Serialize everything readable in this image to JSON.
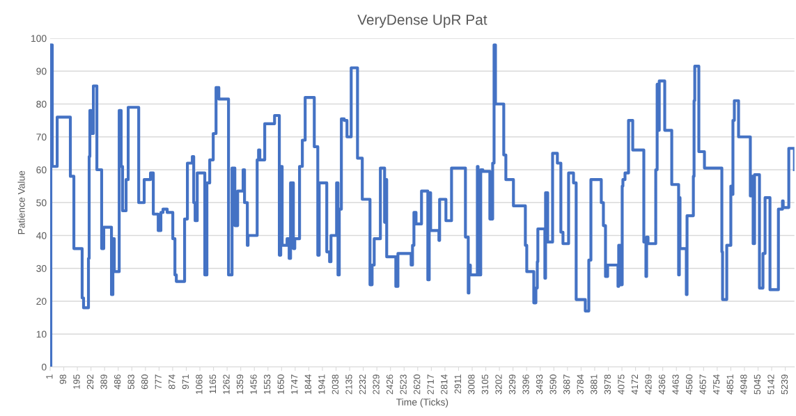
{
  "chart_data": {
    "type": "step",
    "title": "VeryDense UpR Pat",
    "xlabel": "Time (Ticks)",
    "ylabel": "Patience Value",
    "x": [
      1,
      6,
      16,
      51,
      145,
      170,
      229,
      239,
      274,
      279,
      284,
      294,
      309,
      334,
      368,
      383,
      438,
      448,
      458,
      493,
      507,
      517,
      542,
      557,
      632,
      671,
      716,
      736,
      771,
      790,
      805,
      835,
      875,
      890,
      900,
      959,
      979,
      1014,
      1024,
      1034,
      1049,
      1103,
      1118,
      1138,
      1163,
      1183,
      1203,
      1272,
      1297,
      1317,
      1337,
      1376,
      1386,
      1406,
      1411,
      1476,
      1486,
      1495,
      1530,
      1600,
      1634,
      1644,
      1654,
      1689,
      1704,
      1714,
      1734,
      1744,
      1778,
      1798,
      1818,
      1883,
      1908,
      1918,
      1972,
      1992,
      2002,
      2042,
      2052,
      2061,
      2076,
      2096,
      2116,
      2146,
      2191,
      2225,
      2280,
      2295,
      2310,
      2354,
      2384,
      2394,
      2399,
      2464,
      2479,
      2573,
      2583,
      2593,
      2608,
      2647,
      2692,
      2702,
      2712,
      2771,
      2776,
      2821,
      2861,
      2960,
      2980,
      2985,
      2995,
      3045,
      3050,
      3069,
      3084,
      3134,
      3154,
      3164,
      3174,
      3233,
      3248,
      3302,
      3387,
      3397,
      3447,
      3462,
      3472,
      3476,
      3526,
      3531,
      3546,
      3581,
      3615,
      3640,
      3655,
      3695,
      3730,
      3749,
      3814,
      3839,
      3854,
      3928,
      3943,
      3958,
      3973,
      4047,
      4052,
      4062,
      4077,
      4082,
      4097,
      4122,
      4152,
      4231,
      4246,
      4251,
      4261,
      4316,
      4326,
      4331,
      4341,
      4380,
      4430,
      4479,
      4484,
      4489,
      4534,
      4539,
      4584,
      4589,
      4594,
      4623,
      4663,
      4787,
      4792,
      4822,
      4851,
      4861,
      4866,
      4876,
      4906,
      4990,
      5000,
      5010,
      5020,
      5055,
      5080,
      5095,
      5130,
      5190,
      5219,
      5224,
      5264,
      5304
    ],
    "series": [
      {
        "color": "#4472c4",
        "values": [
          0,
          98,
          61,
          76,
          58,
          36,
          21,
          18,
          33,
          64,
          78,
          71,
          85.5,
          60,
          36,
          42.5,
          22,
          39,
          29,
          78,
          61,
          47.5,
          57,
          79,
          50,
          57,
          59,
          46.5,
          41.5,
          47,
          48,
          47,
          39,
          28,
          26,
          45,
          62,
          64,
          50,
          44.5,
          59,
          28,
          56,
          63,
          71,
          85,
          81.5,
          28,
          60.5,
          43,
          53.5,
          60,
          50,
          37,
          40,
          63,
          66,
          63,
          74,
          76.5,
          34,
          61,
          37,
          39,
          33,
          56,
          36,
          39,
          61,
          69,
          82,
          67,
          34,
          56,
          35,
          32,
          40,
          56,
          28,
          48,
          75.5,
          75,
          70,
          91,
          63.5,
          51,
          25,
          31,
          39,
          60.5,
          44,
          57,
          33.5,
          24.5,
          34.5,
          31,
          37,
          47,
          43.5,
          53.5,
          26.5,
          53,
          41.5,
          38.5,
          51,
          44.5,
          60.5,
          39.5,
          22.5,
          31,
          28,
          61,
          28,
          60,
          59.5,
          45,
          62,
          98,
          80,
          64.5,
          57,
          49,
          37,
          29,
          19.5,
          24,
          32,
          42,
          27,
          53,
          38,
          65,
          62,
          41,
          37.5,
          59,
          56,
          20.5,
          17,
          32.5,
          57,
          50,
          43,
          27.5,
          31,
          24.5,
          37,
          25,
          55,
          57,
          59,
          75,
          66,
          38,
          27.5,
          39.5,
          37.5,
          60,
          86,
          72,
          87,
          72,
          55.5,
          28,
          51.5,
          36,
          22,
          46,
          58,
          81,
          91.5,
          65.5,
          60.5,
          35,
          20.5,
          37,
          55,
          52.5,
          75,
          81,
          70,
          52,
          58,
          37.5,
          58.5,
          24,
          34.5,
          51.5,
          23.5,
          48,
          50.5,
          48.5,
          66.5,
          60
        ]
      }
    ],
    "xlim": [
      1,
      5304
    ],
    "ylim": [
      0,
      100
    ],
    "xticks": [
      1,
      98,
      195,
      292,
      389,
      486,
      583,
      680,
      777,
      874,
      971,
      1068,
      1165,
      1262,
      1359,
      1456,
      1553,
      1650,
      1747,
      1844,
      1941,
      2038,
      2135,
      2232,
      2329,
      2426,
      2523,
      2620,
      2717,
      2814,
      2911,
      3008,
      3105,
      3202,
      3299,
      3396,
      3493,
      3590,
      3687,
      3784,
      3881,
      3978,
      4075,
      4172,
      4269,
      4366,
      4463,
      4560,
      4657,
      4754,
      4851,
      4948,
      5045,
      5142,
      5239
    ],
    "yticks": [
      0,
      10,
      20,
      30,
      40,
      50,
      60,
      70,
      80,
      90,
      100
    ],
    "grid": "y"
  }
}
